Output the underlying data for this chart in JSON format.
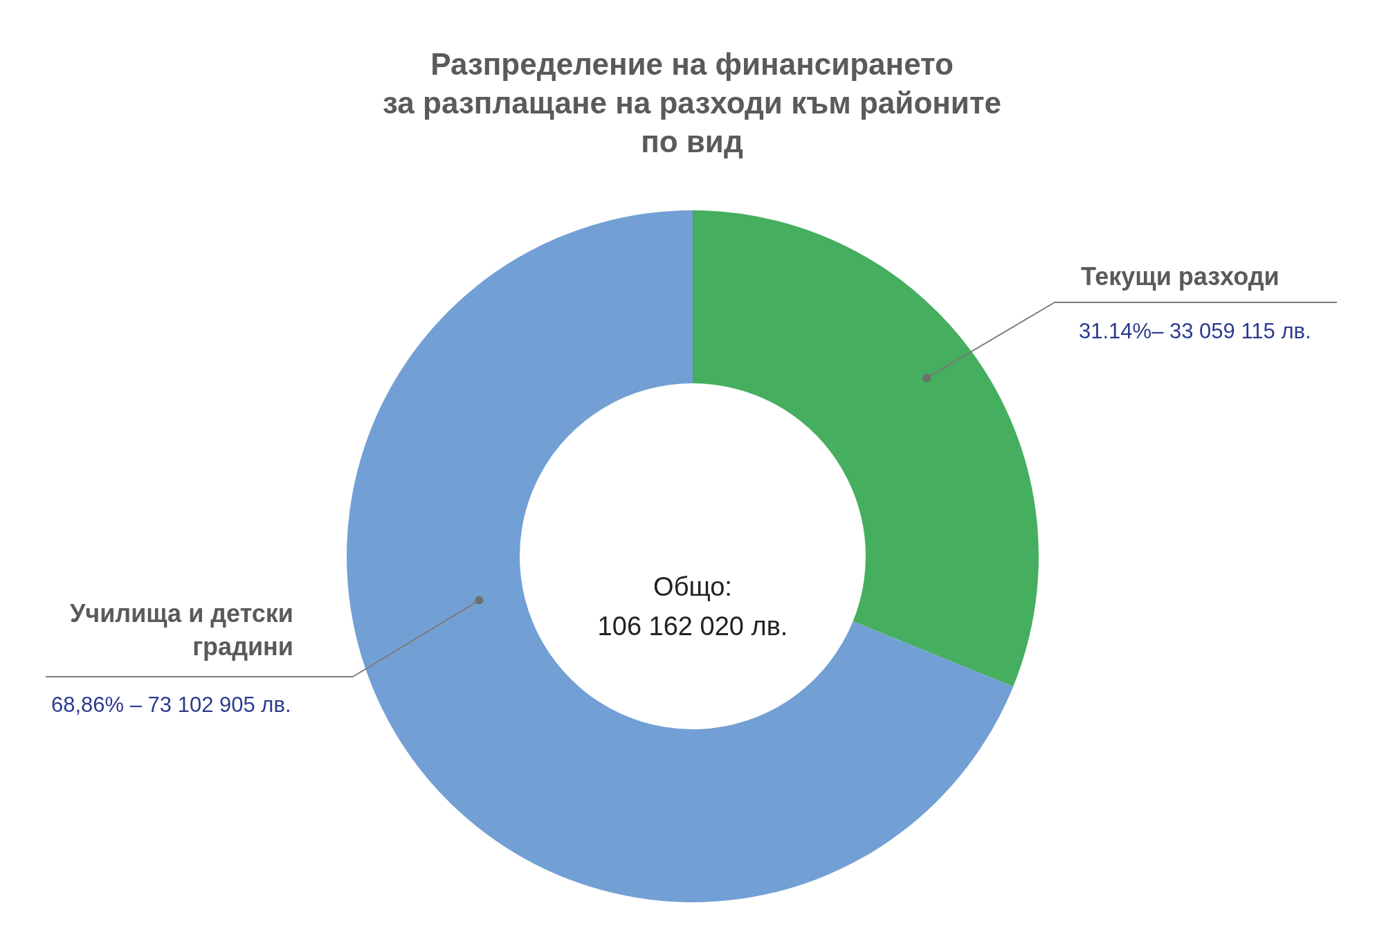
{
  "chart_data": {
    "type": "donut",
    "title": "Разпределение на финансирането\nза разплащане на разходи към районите\nпо вид",
    "categories": [
      "Текущи разходи",
      "Училища и детски градини"
    ],
    "values": [
      31.14,
      68.86
    ],
    "colors": [
      "#45ae5f",
      "#72a0d5"
    ],
    "value_labels": [
      "31.14%– 33 059 115 лв.",
      "68,86% – 73 102 905 лв."
    ],
    "annotations": [
      "Общо:\n106 162 020 лв."
    ],
    "legend": false
  }
}
